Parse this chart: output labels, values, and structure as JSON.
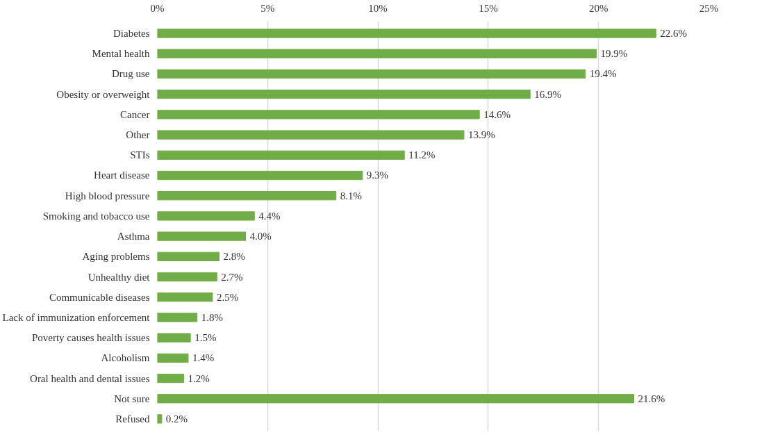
{
  "chart_data": {
    "type": "bar",
    "orientation": "horizontal",
    "categories": [
      "Diabetes",
      "Mental health",
      "Drug use",
      "Obesity or overweight",
      "Cancer",
      "Other",
      "STIs",
      "Heart disease",
      "High blood pressure",
      "Smoking and tobacco use",
      "Asthma",
      "Aging problems",
      "Unhealthy diet",
      "Communicable diseases",
      "Lack of immunization enforcement",
      "Poverty causes health issues",
      "Alcoholism",
      "Oral health and dental issues",
      "Not sure",
      "Refused"
    ],
    "values": [
      22.6,
      19.9,
      19.4,
      16.9,
      14.6,
      13.9,
      11.2,
      9.3,
      8.1,
      4.4,
      4.0,
      2.8,
      2.7,
      2.5,
      1.8,
      1.5,
      1.4,
      1.2,
      21.6,
      0.2
    ],
    "value_labels": [
      "22.6%",
      "19.9%",
      "19.4%",
      "16.9%",
      "14.6%",
      "13.9%",
      "11.2%",
      "9.3%",
      "8.1%",
      "4.4%",
      "4.0%",
      "2.8%",
      "2.7%",
      "2.5%",
      "1.8%",
      "1.5%",
      "1.4%",
      "1.2%",
      "21.6%",
      "0.2%"
    ],
    "color": "#70ad47",
    "xlim": [
      0,
      25
    ],
    "xticks": [
      {
        "value": 0,
        "label": "0%"
      },
      {
        "value": 5,
        "label": "5%"
      },
      {
        "value": 10,
        "label": "10%"
      },
      {
        "value": 15,
        "label": "15%"
      },
      {
        "value": 20,
        "label": "20%"
      },
      {
        "value": 25,
        "label": "25%"
      }
    ],
    "grid": "x"
  }
}
